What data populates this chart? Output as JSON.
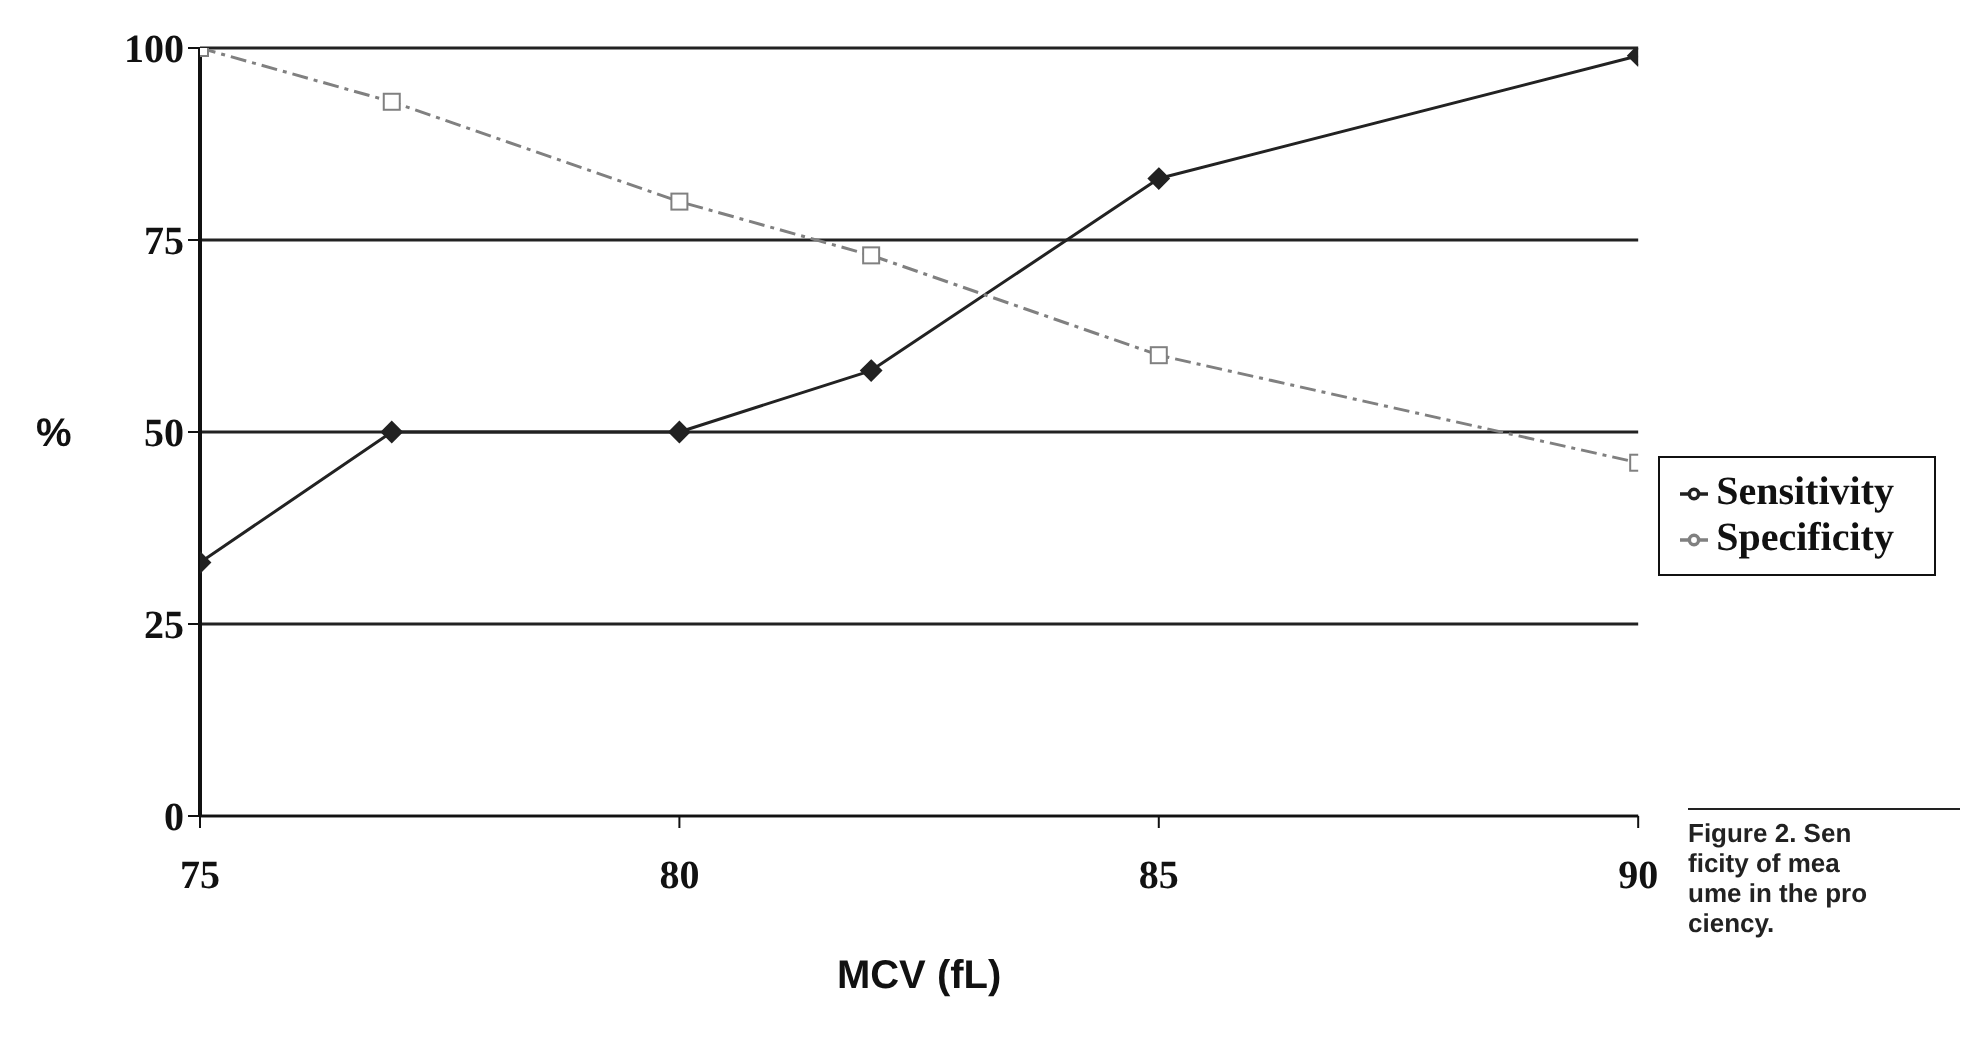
{
  "chart_data": {
    "type": "line",
    "xlabel": "MCV (fL)",
    "ylabel": "%",
    "x": [
      75,
      77,
      80,
      82,
      85,
      90
    ],
    "series": [
      {
        "name": "Sensitivity",
        "color": "#222222",
        "values": [
          33,
          50,
          50,
          58,
          83,
          99
        ],
        "marker": "diamond",
        "line_style": "solid"
      },
      {
        "name": "Specificity",
        "color": "#808080",
        "values": [
          100,
          93,
          80,
          73,
          60,
          46
        ],
        "marker": "square",
        "line_style": "dashed"
      }
    ],
    "xlim": [
      75,
      90
    ],
    "xticks": [
      75,
      80,
      85,
      90
    ],
    "ylim": [
      0,
      100
    ],
    "yticks": [
      0,
      25,
      50,
      75,
      100
    ],
    "grid": "y",
    "legend": "right",
    "annotations": [
      "Figure 2. Sen\nficity of mea\nume in the pro\nciency."
    ]
  }
}
